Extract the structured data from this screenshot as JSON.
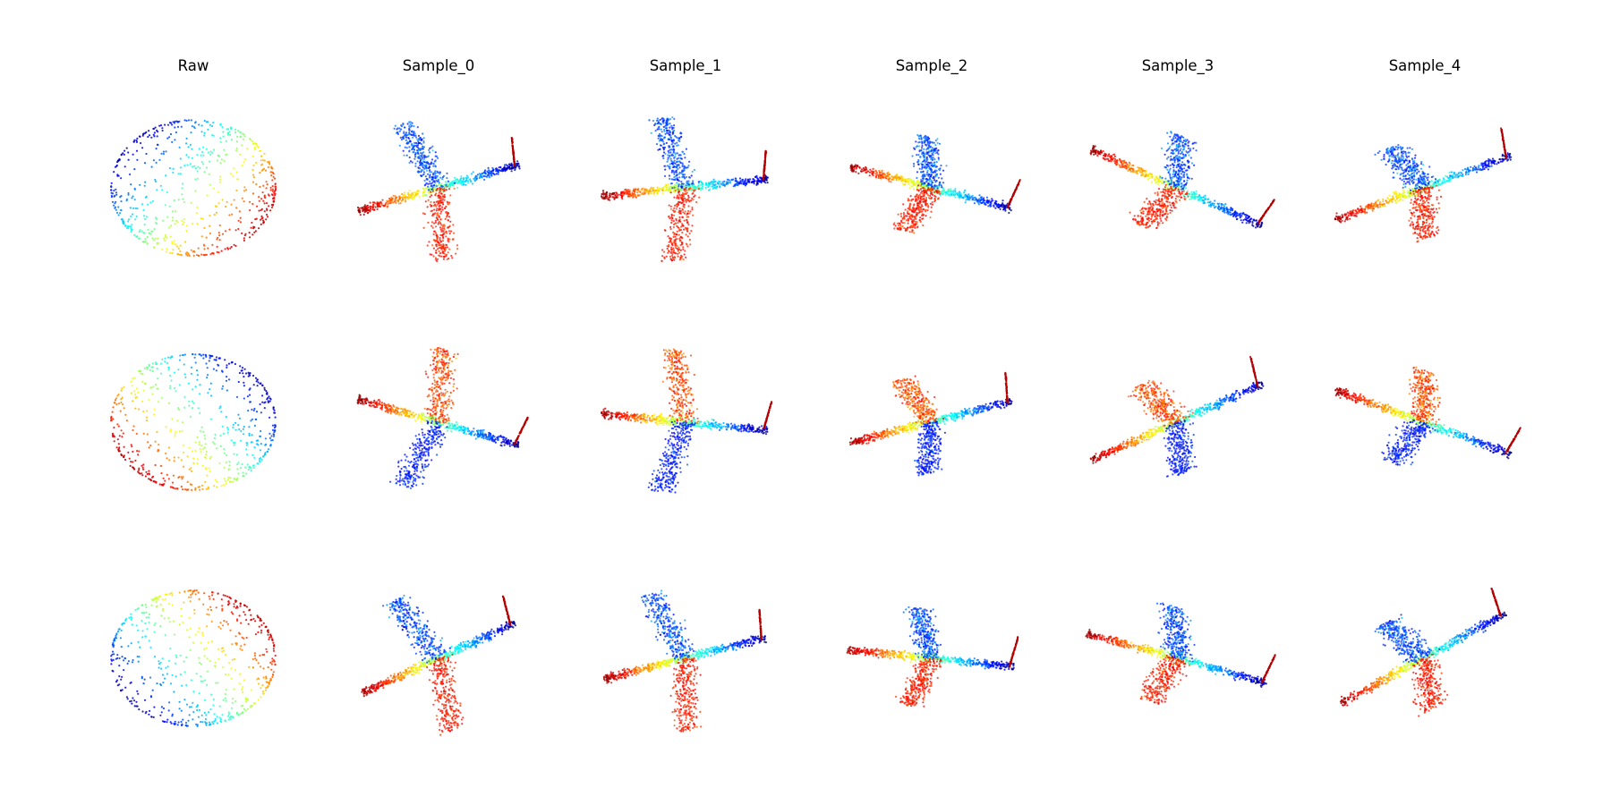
{
  "figure": {
    "columns": [
      {
        "id": "raw",
        "title": "Raw",
        "kind": "sphere"
      },
      {
        "id": "sample-0",
        "title": "Sample_0",
        "kind": "airplane"
      },
      {
        "id": "sample-1",
        "title": "Sample_1",
        "kind": "airplane"
      },
      {
        "id": "sample-2",
        "title": "Sample_2",
        "kind": "airplane"
      },
      {
        "id": "sample-3",
        "title": "Sample_3",
        "kind": "airplane"
      },
      {
        "id": "sample-4",
        "title": "Sample_4",
        "kind": "airplane"
      }
    ],
    "row_count": 3,
    "colormap": "jet",
    "background": "#ffffff",
    "axes_visible": false,
    "point_style": "scatter"
  }
}
